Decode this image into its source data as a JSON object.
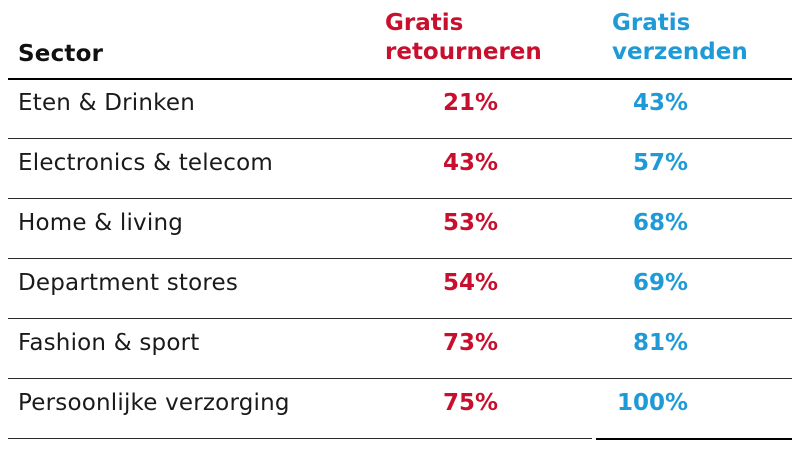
{
  "colors": {
    "returns": "#c8102e",
    "shipping": "#1e9ad6",
    "text": "#1a1a1a"
  },
  "chart_data": {
    "type": "table",
    "columns": [
      "Sector",
      "Gratis retourneren",
      "Gratis verzenden"
    ],
    "header": {
      "sector": "Sector",
      "returns_line1": "Gratis",
      "returns_line2": "retourneren",
      "shipping_line1": "Gratis",
      "shipping_line2": "verzenden"
    },
    "rows": [
      {
        "sector": "Eten & Drinken",
        "returns": "21%",
        "shipping": "43%"
      },
      {
        "sector": "Electronics & telecom",
        "returns": "43%",
        "shipping": "57%"
      },
      {
        "sector": "Home & living",
        "returns": "53%",
        "shipping": "68%"
      },
      {
        "sector": "Department stores",
        "returns": "54%",
        "shipping": "69%"
      },
      {
        "sector": "Fashion & sport",
        "returns": "73%",
        "shipping": "81%"
      },
      {
        "sector": "Persoonlijke verzorging",
        "returns": "75%",
        "shipping": "100%"
      }
    ]
  }
}
